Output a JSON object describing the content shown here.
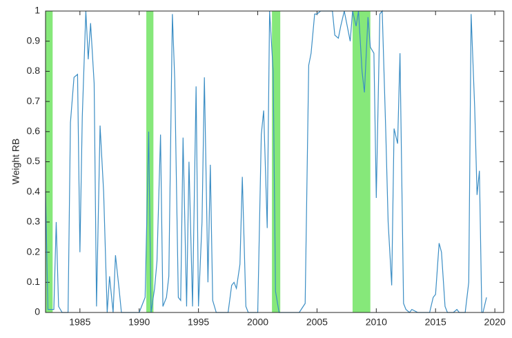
{
  "chart_data": {
    "type": "line",
    "y_label": "Weight RB",
    "x": [
      1982.1,
      1982.3,
      1982.8,
      1983.0,
      1983.2,
      1983.5,
      1983.8,
      1984.0,
      1984.2,
      1984.5,
      1984.8,
      1985.0,
      1985.2,
      1985.5,
      1985.7,
      1985.9,
      1986.2,
      1986.4,
      1986.7,
      1987.0,
      1987.3,
      1987.5,
      1987.8,
      1988.0,
      1988.3,
      1988.5,
      1989.0,
      1990.0,
      1990.5,
      1990.8,
      1991.0,
      1991.3,
      1991.5,
      1991.8,
      1992.0,
      1992.3,
      1992.5,
      1992.8,
      1993.0,
      1993.3,
      1993.5,
      1993.7,
      1994.0,
      1994.2,
      1994.5,
      1994.8,
      1995.0,
      1995.3,
      1995.5,
      1995.8,
      1996.0,
      1996.2,
      1996.5,
      1997.0,
      1997.5,
      1997.8,
      1998.0,
      1998.2,
      1998.5,
      1998.7,
      1999.0,
      1999.2,
      1999.5,
      2000.0,
      2000.3,
      2000.5,
      2000.8,
      2001.0,
      2001.3,
      2001.5,
      2001.8,
      2002.5,
      2003.0,
      2003.5,
      2004.0,
      2004.3,
      2004.5,
      2004.8,
      2005.0,
      2005.3,
      2005.5,
      2006.0,
      2006.3,
      2006.5,
      2006.8,
      2007.0,
      2007.3,
      2007.5,
      2007.8,
      2008.0,
      2008.3,
      2008.5,
      2008.8,
      2009.0,
      2009.3,
      2009.5,
      2009.8,
      2010.0,
      2010.3,
      2010.5,
      2010.8,
      2011.0,
      2011.3,
      2011.5,
      2011.8,
      2012.0,
      2012.3,
      2012.5,
      2012.8,
      2013.0,
      2013.5,
      2014.0,
      2014.5,
      2014.8,
      2015.0,
      2015.3,
      2015.5,
      2015.8,
      2016.0,
      2016.5,
      2016.8,
      2017.0,
      2017.5,
      2017.8,
      2018.0,
      2018.3,
      2018.5,
      2018.7,
      2018.9,
      2019.0,
      2019.3
    ],
    "series": [
      {
        "color": "#3a8dc4",
        "values": [
          0.4,
          0.01,
          0.01,
          0.3,
          0.02,
          0.0,
          0.0,
          0.0,
          0.63,
          0.78,
          0.79,
          0.2,
          0.65,
          1.0,
          0.84,
          0.96,
          0.76,
          0.02,
          0.62,
          0.4,
          0.0,
          0.12,
          0.0,
          0.19,
          0.08,
          0.0,
          0.0,
          0.0,
          0.05,
          0.6,
          0.0,
          0.08,
          0.17,
          0.59,
          0.02,
          0.05,
          0.12,
          0.99,
          0.77,
          0.05,
          0.04,
          0.58,
          0.02,
          0.5,
          0.02,
          0.75,
          0.02,
          0.3,
          0.78,
          0.1,
          0.49,
          0.04,
          0.0,
          0.0,
          0.0,
          0.09,
          0.1,
          0.08,
          0.16,
          0.45,
          0.02,
          0.0,
          0.0,
          0.0,
          0.59,
          0.67,
          0.28,
          1.0,
          0.8,
          0.07,
          0.0,
          0.0,
          0.0,
          0.0,
          0.03,
          0.82,
          0.86,
          0.99,
          0.99,
          1.0,
          1.0,
          1.0,
          1.0,
          0.92,
          0.91,
          0.95,
          1.0,
          0.96,
          0.9,
          1.0,
          0.95,
          1.0,
          0.8,
          0.73,
          0.98,
          0.88,
          0.86,
          0.38,
          0.99,
          1.0,
          0.6,
          0.3,
          0.09,
          0.61,
          0.56,
          0.86,
          0.03,
          0.01,
          0.0,
          0.01,
          0.0,
          0.0,
          0.0,
          0.05,
          0.06,
          0.23,
          0.2,
          0.02,
          0.0,
          0.0,
          0.01,
          0.0,
          0.0,
          0.1,
          0.99,
          0.68,
          0.39,
          0.47,
          0.0,
          0.0,
          0.05
        ]
      }
    ],
    "shaded_regions": [
      [
        1982.1,
        1982.7
      ],
      [
        1990.6,
        1991.2
      ],
      [
        2001.2,
        2001.9
      ],
      [
        2008.0,
        2009.5
      ]
    ],
    "shade_color": "#86e87a",
    "xlim": [
      1982.1,
      2020.75
    ],
    "xticks": [
      1985,
      1990,
      1995,
      2000,
      2005,
      2010,
      2015,
      2020
    ],
    "ylim": [
      0,
      1
    ],
    "yticks": [
      0,
      0.1,
      0.2,
      0.3,
      0.4,
      0.5,
      0.6,
      0.7,
      0.8,
      0.9,
      1
    ]
  }
}
